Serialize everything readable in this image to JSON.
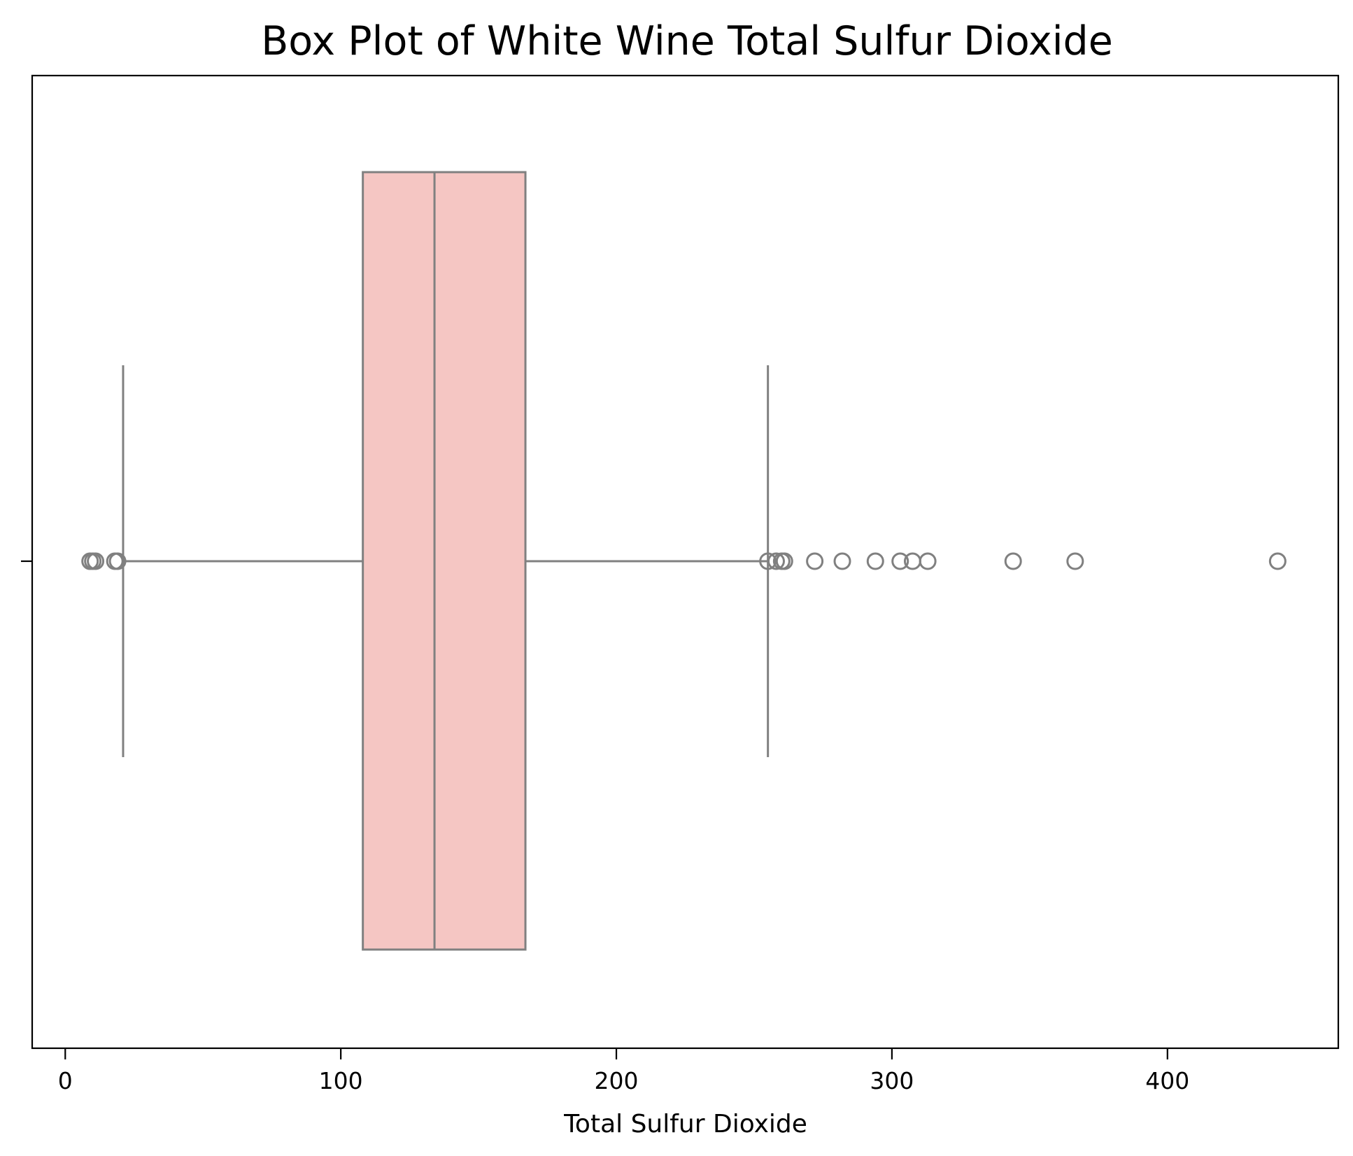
{
  "chart_data": {
    "type": "box",
    "orientation": "horizontal",
    "title": "Box Plot of White Wine Total Sulfur Dioxide",
    "xlabel": "Total Sulfur Dioxide",
    "ylabel": "",
    "xlim": [
      -12,
      462
    ],
    "xticks": [
      0,
      100,
      200,
      300,
      400
    ],
    "xtick_labels": [
      "0",
      "100",
      "200",
      "300",
      "400"
    ],
    "grid": false,
    "colors": {
      "box_fill": "#f5c6c3",
      "line": "#808080"
    },
    "box": {
      "whisker_low": 21,
      "q1": 108,
      "median": 134,
      "q3": 167,
      "whisker_high": 255
    },
    "outliers": [
      9,
      10,
      11,
      18,
      19,
      255,
      258,
      260,
      261,
      272,
      282,
      294,
      303,
      307.5,
      313,
      344,
      366.5,
      440
    ]
  }
}
